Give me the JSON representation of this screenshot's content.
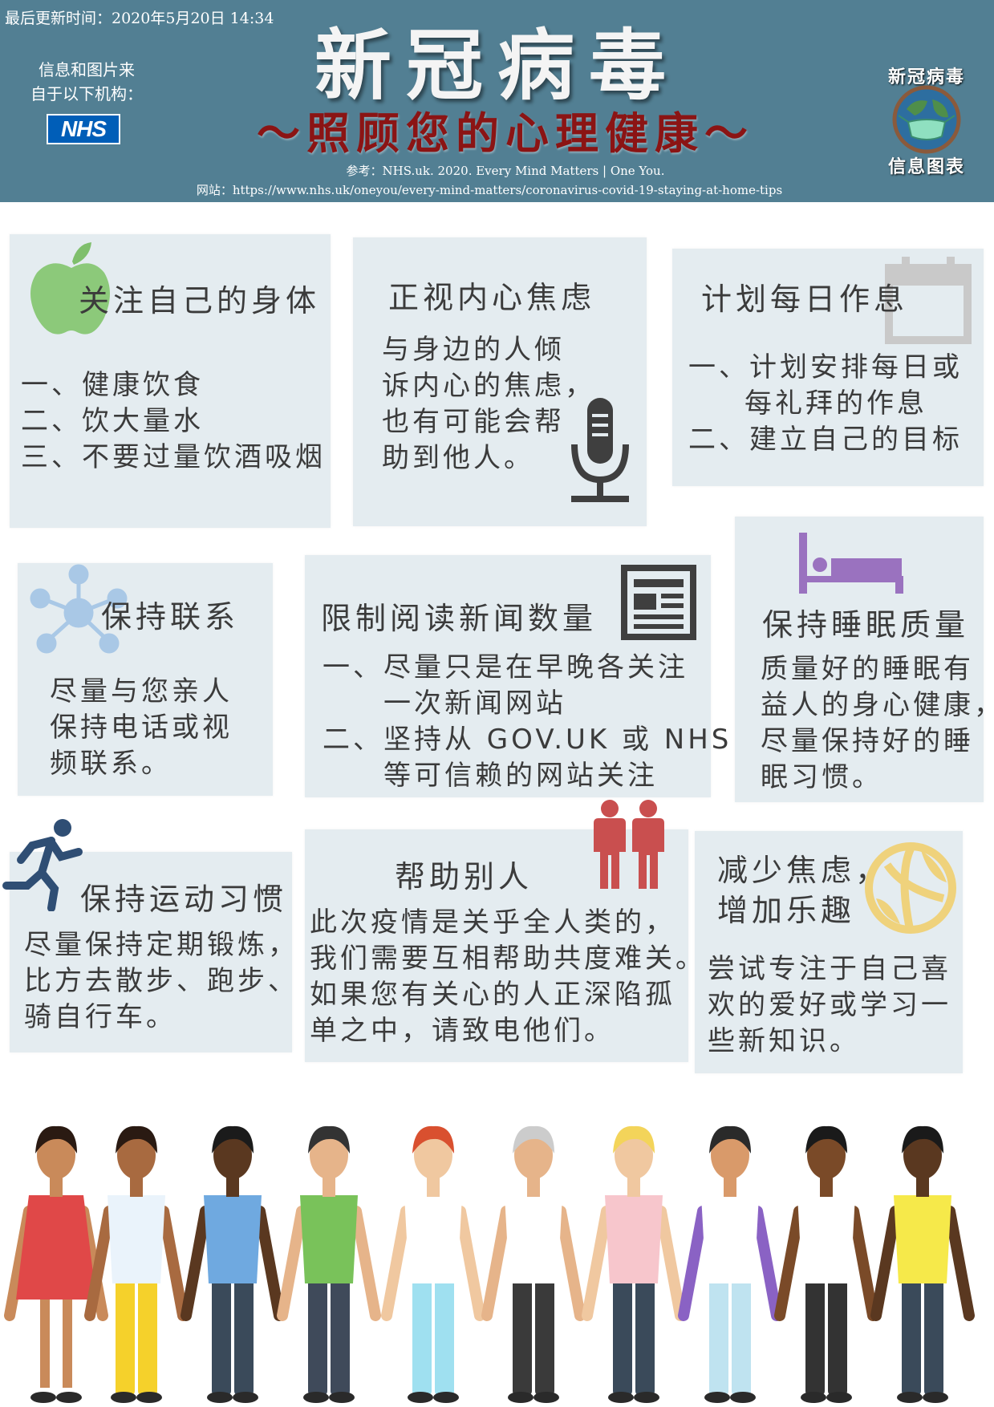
{
  "header": {
    "updated": "最后更新时间：2020年5月20日 14:34",
    "source_line1": "信息和图片来",
    "source_line2": "自于以下机构：",
    "nhs_logo": "NHS",
    "title": "新冠病毒",
    "subtitle": "～照顾您的心理健康～",
    "reference": "参考：NHS.uk. 2020. Every Mind Matters | One You.",
    "website": "网站：https://www.nhs.uk/oneyou/every-mind-matters/coronavirus-covid-19-staying-at-home-tips",
    "logo_top": "新冠病毒",
    "logo_bottom": "信息图表"
  },
  "cards": {
    "body": {
      "title": "关注自己的身体",
      "lines": [
        "一、健康饮食",
        "二、饮大量水",
        "三、不要过量饮酒吸烟"
      ]
    },
    "anxiety": {
      "title": "正视内心焦虑",
      "lines": [
        "与身边的人倾",
        "诉内心的焦虑，",
        "也有可能会帮",
        "助到他人。"
      ]
    },
    "plan": {
      "title": "计划每日作息",
      "line1": "一、计划安排每日或",
      "line2": "每礼拜的作息",
      "line3": "二、建立自己的目标"
    },
    "connect": {
      "title": "保持联系",
      "lines": [
        "尽量与您亲人",
        "保持电话或视",
        "频联系。"
      ]
    },
    "news": {
      "title": "限制阅读新闻数量",
      "line1": "一、尽量只是在早晚各关注",
      "line2": "一次新闻网站",
      "line3": "二、坚持从 GOV.UK 或 NHS",
      "line4": "等可信赖的网站关注"
    },
    "sleep": {
      "title": "保持睡眠质量",
      "lines": [
        "质量好的睡眠有",
        "益人的身心健康，",
        "尽量保持好的睡",
        "眠习惯。"
      ]
    },
    "exercise": {
      "title": "保持运动习惯",
      "lines": [
        "尽量保持定期锻炼，",
        "比方去散步、跑步、",
        "骑自行车。"
      ]
    },
    "help": {
      "title": "帮助别人",
      "lines": [
        "此次疫情是关乎全人类的，",
        "我们需要互相帮助共度难关。",
        "如果您有关心的人正深陷孤",
        "单之中，请致电他们。"
      ]
    },
    "fun": {
      "title1": "减少焦虑，",
      "title2": "增加乐趣",
      "lines": [
        "尝试专注于自己喜",
        "欢的爱好或学习一",
        "些新知识。"
      ]
    }
  },
  "colors": {
    "header_bg": "#527f93",
    "card_bg": "#e4ecf0",
    "subtitle": "#8b1414",
    "apple": "#8cc97a",
    "network": "#a9c8e6",
    "bed": "#9a72bf",
    "people": "#c94f4f",
    "ball": "#efd27c",
    "dark_icon": "#3f3f3f"
  },
  "icons": [
    "apple-icon",
    "microphone-icon",
    "calendar-icon",
    "network-icon",
    "newspaper-icon",
    "bed-icon",
    "runner-icon",
    "two-people-icon",
    "beach-ball-icon",
    "globe-mask-icon"
  ]
}
